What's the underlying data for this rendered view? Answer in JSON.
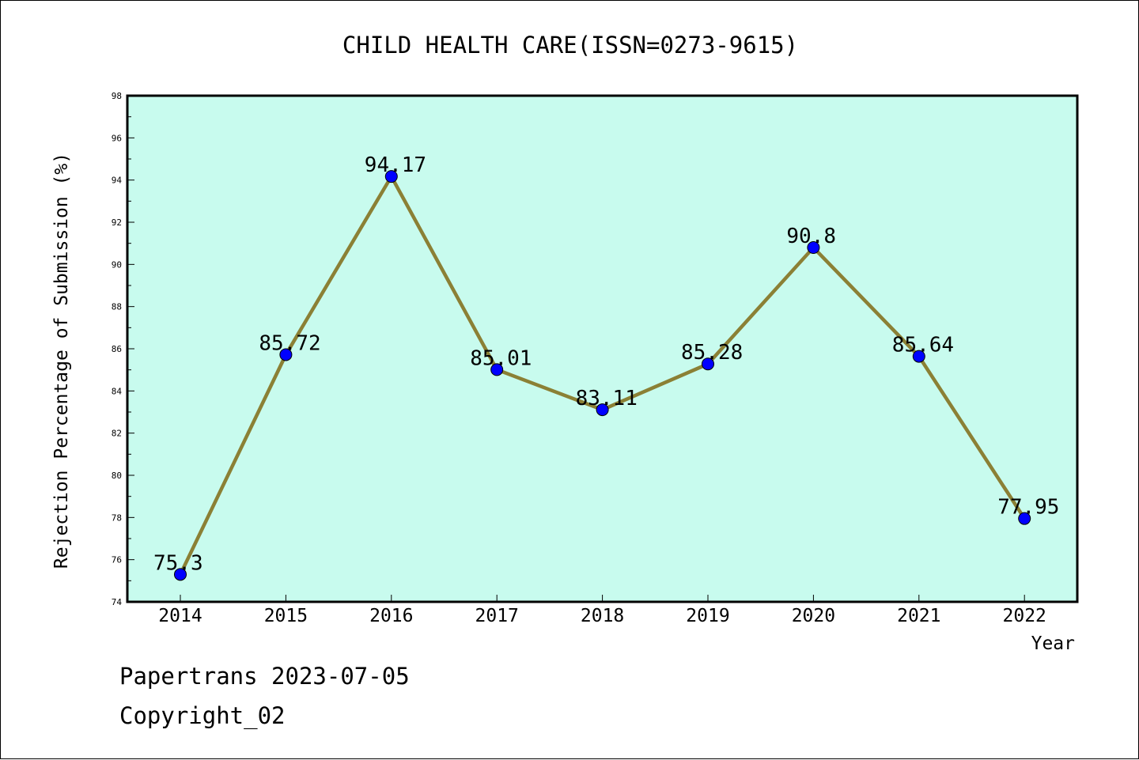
{
  "chart_data": {
    "type": "line",
    "title": "CHILD HEALTH CARE(ISSN=0273-9615)",
    "xlabel": "Year",
    "ylabel": "Rejection Percentage of Submission (%)",
    "categories": [
      "2014",
      "2015",
      "2016",
      "2017",
      "2018",
      "2019",
      "2020",
      "2021",
      "2022"
    ],
    "series": [
      {
        "values": [
          75.3,
          85.72,
          94.17,
          85.01,
          83.11,
          85.28,
          90.8,
          85.64,
          77.95
        ],
        "labels": [
          "75.3",
          "85.72",
          "94.17",
          "85.01",
          "83.11",
          "85.28",
          "90.8",
          "85.64",
          "77.95"
        ],
        "line_color": "#8b8035",
        "marker_color": "#0000ff"
      }
    ],
    "ylim": [
      74,
      98
    ],
    "yticks": [
      "74",
      "76",
      "78",
      "80",
      "82",
      "84",
      "86",
      "88",
      "90",
      "92",
      "94",
      "96",
      "98"
    ],
    "plot_background": "#c8fbee",
    "grid": false,
    "legend": "none"
  },
  "footer": {
    "line1": "Papertrans 2023-07-05",
    "line2": "Copyright_02"
  }
}
